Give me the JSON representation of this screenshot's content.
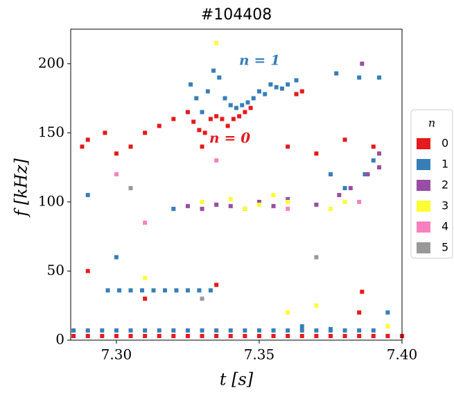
{
  "chart_data": {
    "type": "scatter",
    "title": "#104408",
    "x_label": "t [s]",
    "y_label": "f [kHz]",
    "xlim": [
      7.284,
      7.4
    ],
    "ylim": [
      0,
      225
    ],
    "xticks": [
      {
        "value": 7.3,
        "label": "7.30"
      },
      {
        "value": 7.35,
        "label": "7.35"
      },
      {
        "value": 7.4,
        "label": "7.40"
      }
    ],
    "yticks": [
      0,
      50,
      100,
      150,
      200
    ],
    "legend_title": "n",
    "legend_position": "right",
    "annotations": [
      "n = 1",
      "n = 0"
    ],
    "series": [
      {
        "name": "0",
        "color": "#e41a1c",
        "x": [
          7.285,
          7.29,
          7.295,
          7.3,
          7.305,
          7.31,
          7.315,
          7.32,
          7.325,
          7.33,
          7.335,
          7.34,
          7.345,
          7.35,
          7.355,
          7.36,
          7.365,
          7.37,
          7.375,
          7.38,
          7.385,
          7.39,
          7.395,
          7.4,
          7.325,
          7.327,
          7.329,
          7.331,
          7.333,
          7.335,
          7.337,
          7.339,
          7.341,
          7.343,
          7.345,
          7.347,
          7.363,
          7.365,
          7.288,
          7.29,
          7.296,
          7.3,
          7.305,
          7.31,
          7.315,
          7.32,
          7.33,
          7.29,
          7.31,
          7.335,
          7.386,
          7.385,
          7.36,
          7.37,
          7.38,
          7.39
        ],
        "y": [
          3,
          3,
          3,
          3,
          3,
          3,
          3,
          3,
          3,
          3,
          3,
          3,
          3,
          3,
          3,
          3,
          3,
          3,
          3,
          3,
          3,
          3,
          3,
          3,
          165,
          158,
          152,
          150,
          160,
          162,
          160,
          155,
          160,
          162,
          165,
          168,
          178,
          180,
          140,
          145,
          150,
          135,
          140,
          150,
          155,
          160,
          140,
          50,
          30,
          40,
          35,
          20,
          140,
          135,
          145,
          140
        ]
      },
      {
        "name": "1",
        "color": "#377eb8",
        "x": [
          7.285,
          7.29,
          7.295,
          7.3,
          7.305,
          7.31,
          7.315,
          7.32,
          7.325,
          7.33,
          7.335,
          7.34,
          7.345,
          7.35,
          7.355,
          7.36,
          7.365,
          7.37,
          7.375,
          7.38,
          7.385,
          7.39,
          7.297,
          7.301,
          7.305,
          7.309,
          7.313,
          7.317,
          7.321,
          7.325,
          7.329,
          7.333,
          7.326,
          7.328,
          7.33,
          7.332,
          7.334,
          7.336,
          7.338,
          7.34,
          7.342,
          7.344,
          7.346,
          7.348,
          7.35,
          7.352,
          7.354,
          7.356,
          7.358,
          7.36,
          7.363,
          7.377,
          7.385,
          7.392,
          7.29,
          7.3,
          7.32,
          7.375,
          7.38,
          7.387,
          7.39,
          7.365,
          7.375,
          7.395
        ],
        "y": [
          7,
          7,
          7,
          7,
          7,
          7,
          7,
          7,
          7,
          7,
          7,
          7,
          7,
          7,
          7,
          7,
          7,
          7,
          7,
          7,
          7,
          7,
          36,
          36,
          36,
          36,
          36,
          36,
          36,
          36,
          36,
          36,
          185,
          175,
          165,
          180,
          195,
          190,
          175,
          170,
          168,
          170,
          172,
          175,
          180,
          178,
          185,
          183,
          182,
          185,
          188,
          193,
          190,
          190,
          105,
          60,
          95,
          120,
          110,
          120,
          130,
          10,
          8,
          20
        ]
      },
      {
        "name": "2",
        "color": "#984ea3",
        "x": [
          7.325,
          7.33,
          7.335,
          7.34,
          7.345,
          7.35,
          7.355,
          7.36,
          7.37,
          7.378,
          7.382,
          7.388,
          7.392,
          7.386,
          7.392
        ],
        "y": [
          97,
          95,
          98,
          97,
          95,
          100,
          97,
          102,
          98,
          105,
          110,
          120,
          125,
          200,
          135
        ]
      },
      {
        "name": "3",
        "color": "#ffff33",
        "x": [
          7.33,
          7.34,
          7.345,
          7.35,
          7.355,
          7.36,
          7.375,
          7.38,
          7.335,
          7.36,
          7.37,
          7.395,
          7.31
        ],
        "y": [
          100,
          102,
          95,
          98,
          105,
          100,
          95,
          100,
          215,
          20,
          25,
          10,
          45
        ]
      },
      {
        "name": "4",
        "color": "#f781bf",
        "x": [
          7.31,
          7.335,
          7.36,
          7.385,
          7.3
        ],
        "y": [
          85,
          130,
          95,
          100,
          120
        ]
      },
      {
        "name": "5",
        "color": "#999999",
        "x": [
          7.305,
          7.37,
          7.33
        ],
        "y": [
          110,
          60,
          30
        ]
      }
    ]
  }
}
